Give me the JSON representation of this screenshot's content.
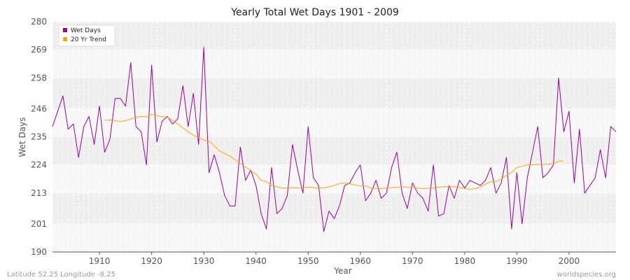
{
  "chart_data": {
    "type": "line",
    "title": "Yearly Total Wet Days 1901 - 2009",
    "xlabel": "Year",
    "ylabel": "Wet Days",
    "xlim": [
      1901,
      2009
    ],
    "ylim": [
      190,
      280
    ],
    "y_ticks": [
      "190",
      "201",
      "213",
      "224",
      "235",
      "246",
      "258",
      "269",
      "280"
    ],
    "x_ticks": [
      "1910",
      "1920",
      "1930",
      "1940",
      "1950",
      "1960",
      "1970",
      "1980",
      "1990",
      "2000"
    ],
    "grid": true,
    "legend_position": "top-left",
    "series": [
      {
        "name": "Wet Days",
        "color": "#990099",
        "x": [
          1901,
          1902,
          1903,
          1904,
          1905,
          1906,
          1907,
          1908,
          1909,
          1910,
          1911,
          1912,
          1913,
          1914,
          1915,
          1916,
          1917,
          1918,
          1919,
          1920,
          1921,
          1922,
          1923,
          1924,
          1925,
          1926,
          1927,
          1928,
          1929,
          1930,
          1931,
          1932,
          1933,
          1934,
          1935,
          1936,
          1937,
          1938,
          1939,
          1940,
          1941,
          1942,
          1943,
          1944,
          1945,
          1946,
          1947,
          1948,
          1949,
          1950,
          1951,
          1952,
          1953,
          1954,
          1955,
          1956,
          1957,
          1958,
          1959,
          1960,
          1961,
          1962,
          1963,
          1964,
          1965,
          1966,
          1967,
          1968,
          1969,
          1970,
          1971,
          1972,
          1973,
          1974,
          1975,
          1976,
          1977,
          1978,
          1979,
          1980,
          1981,
          1982,
          1983,
          1984,
          1985,
          1986,
          1987,
          1988,
          1989,
          1990,
          1991,
          1992,
          1993,
          1994,
          1995,
          1996,
          1997,
          1998,
          1999,
          2000,
          2001,
          2002,
          2003,
          2004,
          2005,
          2006,
          2007,
          2008,
          2009
        ],
        "values": [
          239,
          245,
          251,
          238,
          240,
          227,
          239,
          243,
          232,
          247,
          229,
          234,
          250,
          250,
          247,
          264,
          239,
          237,
          224,
          263,
          233,
          241,
          243,
          240,
          242,
          255,
          239,
          252,
          232,
          270,
          221,
          228,
          221,
          212,
          208,
          208,
          231,
          218,
          222,
          216,
          205,
          199,
          223,
          205,
          207,
          212,
          232,
          222,
          213,
          239,
          219,
          216,
          198,
          206,
          203,
          208,
          216,
          217,
          221,
          224,
          210,
          213,
          218,
          211,
          213,
          223,
          229,
          213,
          207,
          217,
          213,
          211,
          206,
          224,
          204,
          205,
          216,
          211,
          218,
          215,
          218,
          217,
          216,
          218,
          223,
          213,
          217,
          227,
          199,
          221,
          201,
          219,
          229,
          239,
          219,
          221,
          224,
          258,
          237,
          245,
          217,
          238,
          213,
          216,
          219,
          230,
          219,
          239,
          237
        ]
      },
      {
        "name": "20 Yr Trend",
        "color": "#ffa500",
        "x": [
          1911,
          1912,
          1913,
          1914,
          1915,
          1916,
          1917,
          1918,
          1919,
          1920,
          1921,
          1922,
          1923,
          1924,
          1925,
          1926,
          1927,
          1928,
          1929,
          1930,
          1931,
          1932,
          1933,
          1934,
          1935,
          1936,
          1937,
          1938,
          1939,
          1940,
          1941,
          1942,
          1943,
          1944,
          1945,
          1946,
          1947,
          1948,
          1949,
          1950,
          1951,
          1952,
          1953,
          1954,
          1955,
          1956,
          1957,
          1958,
          1959,
          1960,
          1961,
          1962,
          1963,
          1964,
          1965,
          1966,
          1967,
          1968,
          1969,
          1970,
          1971,
          1972,
          1973,
          1974,
          1975,
          1976,
          1977,
          1978,
          1979,
          1980,
          1981,
          1982,
          1983,
          1984,
          1985,
          1986,
          1987,
          1988,
          1989,
          1990,
          1991,
          1992,
          1993,
          1994,
          1995,
          1996,
          1997,
          1998,
          1999
        ],
        "values": [
          241.5,
          241.6,
          241.4,
          241.0,
          241.3,
          242.0,
          242.5,
          243.0,
          242.8,
          243.8,
          243.3,
          242.9,
          242.6,
          241.4,
          240.0,
          238.5,
          237.0,
          235.6,
          234.6,
          233.7,
          233.5,
          231.5,
          229.5,
          228.5,
          227.5,
          226.0,
          224.5,
          223.2,
          221.8,
          220.5,
          218.0,
          217.5,
          216.0,
          215.5,
          215.0,
          215.0,
          215.2,
          215.0,
          215.2,
          215.3,
          215.2,
          215.0,
          215.1,
          215.5,
          216.0,
          216.7,
          217.0,
          216.6,
          216.2,
          215.8,
          215.8,
          215.0,
          214.8,
          214.8,
          215.0,
          215.2,
          215.2,
          215.5,
          215.3,
          215.2,
          215.0,
          214.8,
          214.9,
          215.0,
          215.3,
          215.5,
          215.6,
          215.5,
          215.2,
          214.8,
          214.5,
          214.8,
          215.3,
          216.5,
          217.5,
          217.5,
          218.5,
          220.0,
          221.2,
          223.0,
          223.5,
          224.0,
          224.0,
          224.2,
          224.2,
          224.3,
          224.6,
          225.4,
          225.6
        ]
      }
    ]
  },
  "footer": {
    "left": "Latitude 52.25 Longitude -8.25",
    "right": "worldspecies.org"
  }
}
